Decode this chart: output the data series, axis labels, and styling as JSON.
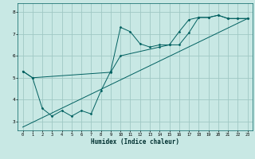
{
  "title": "",
  "xlabel": "Humidex (Indice chaleur)",
  "ylabel": "",
  "bg_color": "#c8e8e4",
  "grid_color": "#a0c8c4",
  "line_color": "#006060",
  "xlim": [
    -0.5,
    23.5
  ],
  "ylim": [
    2.6,
    8.4
  ],
  "xticks": [
    0,
    1,
    2,
    3,
    4,
    5,
    6,
    7,
    8,
    9,
    10,
    11,
    12,
    13,
    14,
    15,
    16,
    17,
    18,
    19,
    20,
    21,
    22,
    23
  ],
  "yticks": [
    3,
    4,
    5,
    6,
    7,
    8
  ],
  "series1": {
    "x": [
      0,
      1,
      2,
      3,
      4,
      5,
      6,
      7,
      8,
      9,
      10,
      11,
      12,
      13,
      14,
      15,
      16,
      17,
      18,
      19,
      20,
      21,
      22,
      23
    ],
    "y": [
      5.3,
      5.0,
      3.6,
      3.25,
      3.5,
      3.25,
      3.5,
      3.35,
      4.4,
      5.3,
      7.3,
      7.1,
      6.55,
      6.4,
      6.5,
      6.5,
      7.1,
      7.65,
      7.75,
      7.75,
      7.85,
      7.7,
      7.7,
      7.7
    ]
  },
  "series2": {
    "x": [
      0,
      1,
      9,
      10,
      14,
      15,
      16,
      17,
      18,
      19,
      20,
      21,
      22,
      23
    ],
    "y": [
      5.3,
      5.0,
      5.25,
      6.0,
      6.4,
      6.5,
      6.5,
      7.05,
      7.75,
      7.75,
      7.85,
      7.7,
      7.7,
      7.7
    ]
  },
  "series3": {
    "x": [
      0,
      23
    ],
    "y": [
      2.75,
      7.7
    ]
  }
}
